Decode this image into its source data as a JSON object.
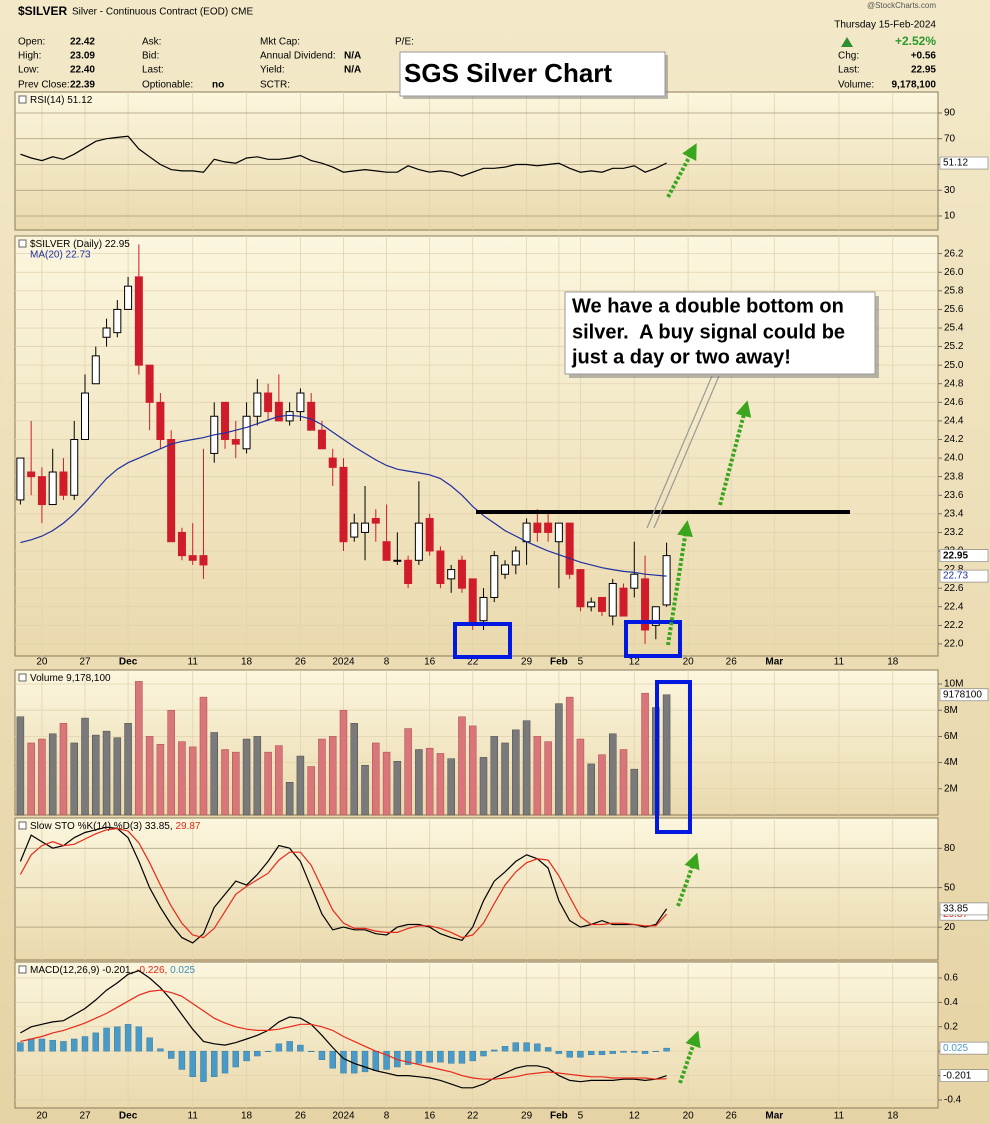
{
  "header": {
    "symbol": "$SILVER",
    "description": "Silver - Continuous Contract (EOD) CME",
    "watermark": "@StockCharts.com",
    "date": "Thursday 15-Feb-2024",
    "change_pct": "+2.52%",
    "right_fields": [
      {
        "label": "Chg:",
        "value": "+0.56"
      },
      {
        "label": "Last:",
        "value": "22.95"
      },
      {
        "label": "Volume:",
        "value": "9,178,100"
      }
    ],
    "columns": [
      [
        {
          "label": "Open:",
          "value": "22.42"
        },
        {
          "label": "High:",
          "value": "23.09"
        },
        {
          "label": "Low:",
          "value": "22.40"
        },
        {
          "label": "Prev Close:",
          "value": "22.39"
        }
      ],
      [
        {
          "label": "Ask:"
        },
        {
          "label": "Bid:"
        },
        {
          "label": "Last:"
        },
        {
          "label": "Optionable:",
          "value": "no"
        }
      ],
      [
        {
          "label": "Mkt Cap:"
        },
        {
          "label": "Annual Dividend:",
          "value": "N/A"
        },
        {
          "label": "Yield:",
          "value": "N/A"
        },
        {
          "label": "SCTR:"
        }
      ],
      [
        {
          "label": "P/E:"
        }
      ]
    ]
  },
  "title_box": "SGS Silver Chart",
  "callout": [
    "We have a double bottom on",
    "silver.  A buy signal could be",
    "just a day or two away!"
  ],
  "chart_data": [
    {
      "type": "line",
      "legend": [
        {
          "text": "RSI(14) 51.12",
          "color": "#000000"
        }
      ],
      "series": [
        {
          "color": "#000000",
          "last_value_box": true,
          "values": [
            58,
            55,
            53,
            56,
            54,
            58,
            63,
            68,
            70,
            71,
            72,
            62,
            56,
            50,
            46,
            45,
            45,
            44,
            54,
            52,
            51,
            55,
            56,
            54,
            54,
            55,
            57,
            53,
            51,
            48,
            44,
            45,
            46,
            45,
            44,
            44,
            49,
            46,
            44,
            45,
            44,
            41,
            44,
            47,
            47,
            48,
            50,
            50,
            49,
            50,
            51,
            47,
            44,
            45,
            44,
            47,
            47,
            49,
            44,
            47,
            51.12
          ]
        }
      ],
      "ylim": [
        -0.9,
        106.3
      ],
      "yticks": [
        10,
        30,
        50,
        70,
        90
      ],
      "grid": true,
      "grid_color": "#a89a7c"
    },
    {
      "type": "candlestick",
      "legend": [
        {
          "text": "$SILVER (Daily) 22.95",
          "color": "#000000"
        }
      ],
      "x": [
        0,
        1,
        2,
        3,
        4,
        5,
        6,
        7,
        8,
        9,
        10,
        11,
        12,
        13,
        14,
        15,
        16,
        17,
        18,
        19,
        20,
        21,
        22,
        23,
        24,
        25,
        26,
        27,
        28,
        29,
        30,
        31,
        32,
        33,
        34,
        35,
        36,
        37,
        38,
        39,
        40,
        41,
        42,
        43,
        44,
        45,
        46,
        47,
        48,
        49,
        50,
        51,
        52,
        53,
        54,
        55,
        56,
        57,
        58,
        59,
        60
      ],
      "open": [
        23.55,
        23.85,
        23.8,
        23.5,
        23.85,
        23.6,
        24.2,
        24.8,
        25.3,
        25.35,
        25.6,
        25.95,
        25.0,
        24.6,
        24.2,
        23.2,
        22.95,
        22.95,
        24.05,
        24.6,
        24.2,
        24.1,
        24.45,
        24.7,
        24.6,
        24.4,
        24.5,
        24.6,
        24.3,
        24.0,
        23.9,
        23.15,
        23.2,
        23.35,
        23.1,
        22.9,
        22.9,
        22.9,
        23.35,
        23.0,
        22.7,
        22.9,
        22.7,
        22.25,
        22.5,
        22.75,
        22.85,
        23.1,
        23.3,
        23.3,
        23.1,
        23.3,
        22.8,
        22.4,
        22.5,
        22.3,
        22.6,
        22.6,
        22.7,
        22.2,
        22.42
      ],
      "high": [
        24.0,
        24.4,
        23.9,
        24.1,
        24.0,
        24.4,
        24.9,
        25.2,
        25.5,
        25.7,
        25.95,
        26.3,
        25.0,
        24.7,
        24.3,
        23.25,
        23.3,
        24.1,
        24.6,
        24.6,
        24.4,
        24.6,
        24.85,
        24.8,
        24.9,
        24.6,
        24.75,
        24.7,
        24.4,
        24.1,
        24.0,
        23.4,
        23.7,
        23.45,
        23.5,
        23.2,
        22.95,
        23.75,
        23.4,
        23.05,
        22.85,
        22.95,
        22.7,
        22.6,
        23.0,
        22.9,
        23.05,
        23.35,
        23.45,
        23.4,
        23.3,
        23.3,
        22.8,
        22.5,
        22.5,
        22.7,
        22.65,
        23.1,
        22.95,
        22.4,
        23.09
      ],
      "low": [
        23.5,
        23.6,
        23.3,
        23.5,
        23.55,
        23.55,
        24.2,
        24.8,
        25.2,
        25.3,
        25.6,
        24.9,
        24.3,
        24.1,
        23.1,
        22.9,
        22.85,
        22.7,
        23.95,
        24.1,
        24.0,
        24.05,
        24.35,
        24.4,
        24.4,
        24.35,
        24.4,
        24.3,
        24.1,
        23.7,
        23.0,
        23.1,
        22.9,
        23.1,
        22.9,
        22.85,
        22.6,
        22.85,
        22.95,
        22.6,
        22.55,
        22.55,
        22.15,
        22.15,
        22.45,
        22.7,
        22.75,
        22.85,
        23.1,
        23.1,
        22.6,
        22.7,
        22.35,
        22.35,
        22.3,
        22.2,
        22.3,
        22.5,
        22.0,
        22.05,
        22.4
      ],
      "close": [
        24.0,
        23.8,
        23.5,
        23.85,
        23.6,
        24.2,
        24.7,
        25.1,
        25.4,
        25.6,
        25.85,
        25.0,
        24.6,
        24.2,
        23.1,
        22.95,
        22.9,
        22.85,
        24.45,
        24.2,
        24.15,
        24.45,
        24.7,
        24.5,
        24.4,
        24.5,
        24.7,
        24.3,
        24.1,
        23.9,
        23.1,
        23.3,
        23.3,
        23.3,
        22.9,
        22.9,
        22.65,
        23.3,
        23.0,
        22.65,
        22.8,
        22.6,
        22.2,
        22.5,
        22.95,
        22.85,
        23.0,
        23.3,
        23.2,
        23.2,
        23.3,
        22.75,
        22.4,
        22.45,
        22.35,
        22.65,
        22.3,
        22.75,
        22.15,
        22.4,
        22.95
      ],
      "up_color": "#000000",
      "down_color": "#d01c2a",
      "last_value_box": true,
      "series": [
        {
          "name": "MA(20) 22.73",
          "color": "#1f2fa0",
          "last_value_box": true,
          "values": [
            23.09,
            23.12,
            23.16,
            23.22,
            23.3,
            23.4,
            23.52,
            23.65,
            23.78,
            23.88,
            23.95,
            24.0,
            24.05,
            24.1,
            24.15,
            24.18,
            24.2,
            24.22,
            24.25,
            24.27,
            24.3,
            24.33,
            24.37,
            24.41,
            24.45,
            24.46,
            24.45,
            24.42,
            24.36,
            24.28,
            24.2,
            24.12,
            24.05,
            23.98,
            23.92,
            23.88,
            23.86,
            23.84,
            23.82,
            23.78,
            23.7,
            23.6,
            23.48,
            23.38,
            23.3,
            23.22,
            23.16,
            23.1,
            23.05,
            23.0,
            22.96,
            22.92,
            22.88,
            22.85,
            22.82,
            22.8,
            22.78,
            22.77,
            22.75,
            22.74,
            22.73
          ]
        }
      ],
      "xlim": [
        -0.5,
        85.2
      ],
      "xticks": [
        {
          "value": 2,
          "label": "20"
        },
        {
          "value": 6,
          "label": "27"
        },
        {
          "value": 10,
          "label": "Dec"
        },
        {
          "value": 16,
          "label": "11"
        },
        {
          "value": 21,
          "label": "18"
        },
        {
          "value": 26,
          "label": "26"
        },
        {
          "value": 30,
          "label": "2024"
        },
        {
          "value": 34,
          "label": "8"
        },
        {
          "value": 38,
          "label": "16"
        },
        {
          "value": 42,
          "label": "22"
        },
        {
          "value": 47,
          "label": "29"
        },
        {
          "value": 50,
          "label": "Feb"
        },
        {
          "value": 52,
          "label": "5"
        },
        {
          "value": 57,
          "label": "12"
        },
        {
          "value": 62,
          "label": "20"
        },
        {
          "value": 66,
          "label": "26"
        },
        {
          "value": 70,
          "label": "Mar"
        },
        {
          "value": 76,
          "label": "11"
        },
        {
          "value": 81,
          "label": "18"
        }
      ],
      "ylim": [
        21.87,
        26.39
      ],
      "yticks": [
        {
          "value": 22,
          "label": "22.0"
        },
        22.2,
        22.4,
        22.6,
        22.8,
        {
          "value": 23,
          "label": "23.0"
        },
        23.2,
        23.4,
        23.6,
        23.8,
        {
          "value": 24,
          "label": "24.0"
        },
        24.2,
        24.4,
        24.6,
        24.8,
        {
          "value": 25,
          "label": "25.0"
        },
        25.2,
        25.4,
        25.6,
        25.8,
        {
          "value": 26,
          "label": "26.0"
        },
        26.2
      ],
      "grid": true,
      "grid_color": "#e2d3ae"
    },
    {
      "type": "bar",
      "legend": [
        {
          "text": "Volume 9,178,100",
          "color": "#000000"
        }
      ],
      "values": [
        7500000,
        5500000,
        5800000,
        6200000,
        7000000,
        5500000,
        7400000,
        6100000,
        6400000,
        5900000,
        7000000,
        10200000,
        6000000,
        5400000,
        8000000,
        5600000,
        5200000,
        9000000,
        6300000,
        5000000,
        4800000,
        5800000,
        6000000,
        4800000,
        5300000,
        2500000,
        4500000,
        3700000,
        5800000,
        6000000,
        8000000,
        7000000,
        3800000,
        5500000,
        4800000,
        4100000,
        6600000,
        5000000,
        5100000,
        4700000,
        4300000,
        7500000,
        6800000,
        4400000,
        6000000,
        5500000,
        6500000,
        7200000,
        6000000,
        5600000,
        8500000,
        9000000,
        5800000,
        3900000,
        4600000,
        6200000,
        5000000,
        3500000,
        9300000,
        8200000,
        9178100
      ],
      "up_color": "#7a7a7a",
      "down_color": "#d9767a",
      "last_value_box": true,
      "ylim": [
        0,
        11070000
      ],
      "yticks": [
        {
          "value": 2000000,
          "label": "2M"
        },
        {
          "value": 4000000,
          "label": "4M"
        },
        {
          "value": 6000000,
          "label": "6M"
        },
        {
          "value": 8000000,
          "label": "8M"
        },
        {
          "value": 10000000,
          "label": "10M"
        }
      ],
      "grid": true,
      "grid_color": "#e2d3ae"
    },
    {
      "type": "line",
      "legend": [
        {
          "text": "Slow STO %K(14) %D(3) 33.85,",
          "color": "#000000"
        },
        {
          "text": "29.87",
          "color": "#e8281a"
        }
      ],
      "series": [
        {
          "color": "#000000",
          "last_value_box": true,
          "values": [
            70,
            90,
            85,
            80,
            82,
            88,
            92,
            94,
            96,
            95,
            88,
            70,
            50,
            35,
            22,
            12,
            8,
            15,
            35,
            45,
            55,
            52,
            60,
            70,
            82,
            80,
            70,
            50,
            30,
            18,
            20,
            18,
            18,
            15,
            14,
            20,
            22,
            22,
            20,
            15,
            12,
            10,
            20,
            40,
            55,
            62,
            70,
            75,
            72,
            65,
            40,
            25,
            20,
            22,
            25,
            22,
            22,
            22,
            20,
            22,
            33.85
          ]
        },
        {
          "color": "#e8281a",
          "last_value_box": true,
          "values": [
            60,
            75,
            82,
            85,
            82,
            83,
            87,
            91,
            94,
            95,
            93,
            84,
            69,
            52,
            36,
            23,
            14,
            12,
            19,
            32,
            45,
            51,
            56,
            61,
            71,
            77,
            77,
            67,
            50,
            33,
            23,
            19,
            19,
            17,
            16,
            16,
            19,
            21,
            21,
            19,
            16,
            12,
            14,
            23,
            38,
            52,
            62,
            69,
            72,
            71,
            59,
            43,
            28,
            22,
            22,
            23,
            23,
            22,
            21,
            21,
            29.87
          ]
        }
      ],
      "ylim": [
        -5,
        103
      ],
      "yticks": [
        20,
        50,
        80
      ],
      "grid": true,
      "grid_color": "#a89a7c"
    },
    {
      "type": "line",
      "legend": [
        {
          "text": "MACD(12,26,9) -0.201,",
          "color": "#000000"
        },
        {
          "text": "-0.226,",
          "color": "#e8281a"
        },
        {
          "text": "0.025",
          "color": "#3d8fbf"
        }
      ],
      "series": [
        {
          "color": "#000000",
          "last_value_box": true,
          "values": [
            0.15,
            0.2,
            0.22,
            0.24,
            0.25,
            0.3,
            0.35,
            0.42,
            0.5,
            0.56,
            0.63,
            0.66,
            0.6,
            0.52,
            0.42,
            0.3,
            0.18,
            0.08,
            0.06,
            0.05,
            0.07,
            0.1,
            0.13,
            0.17,
            0.24,
            0.28,
            0.27,
            0.22,
            0.13,
            0.03,
            -0.06,
            -0.1,
            -0.13,
            -0.16,
            -0.18,
            -0.2,
            -0.2,
            -0.21,
            -0.22,
            -0.24,
            -0.27,
            -0.3,
            -0.3,
            -0.27,
            -0.22,
            -0.18,
            -0.14,
            -0.12,
            -0.12,
            -0.14,
            -0.2,
            -0.24,
            -0.25,
            -0.24,
            -0.24,
            -0.24,
            -0.23,
            -0.23,
            -0.24,
            -0.23,
            -0.201
          ]
        },
        {
          "color": "#e8281a",
          "values": [
            0.08,
            0.1,
            0.12,
            0.15,
            0.17,
            0.2,
            0.23,
            0.27,
            0.31,
            0.36,
            0.41,
            0.46,
            0.49,
            0.5,
            0.48,
            0.45,
            0.39,
            0.33,
            0.27,
            0.23,
            0.2,
            0.18,
            0.17,
            0.17,
            0.18,
            0.2,
            0.22,
            0.22,
            0.2,
            0.17,
            0.12,
            0.08,
            0.04,
            0,
            -0.03,
            -0.07,
            -0.09,
            -0.11,
            -0.13,
            -0.15,
            -0.17,
            -0.2,
            -0.22,
            -0.23,
            -0.23,
            -0.22,
            -0.21,
            -0.19,
            -0.18,
            -0.17,
            -0.18,
            -0.19,
            -0.2,
            -0.21,
            -0.21,
            -0.22,
            -0.22,
            -0.22,
            -0.22,
            -0.23,
            -0.226
          ]
        },
        {
          "type": "bar",
          "color": "#4a9ac8",
          "last_value_box": true,
          "values": [
            0.07,
            0.1,
            0.1,
            0.09,
            0.08,
            0.1,
            0.12,
            0.15,
            0.19,
            0.2,
            0.22,
            0.2,
            0.11,
            0.02,
            -0.06,
            -0.15,
            -0.21,
            -0.25,
            -0.21,
            -0.18,
            -0.13,
            -0.08,
            -0.04,
            0,
            0.06,
            0.08,
            0.05,
            0,
            -0.07,
            -0.14,
            -0.18,
            -0.18,
            -0.17,
            -0.16,
            -0.15,
            -0.13,
            -0.11,
            -0.1,
            -0.09,
            -0.09,
            -0.1,
            -0.1,
            -0.08,
            -0.04,
            0.01,
            0.04,
            0.07,
            0.07,
            0.06,
            0.03,
            -0.02,
            -0.05,
            -0.05,
            -0.03,
            -0.03,
            -0.02,
            -0.01,
            -0.01,
            -0.02,
            0,
            0.025
          ]
        }
      ],
      "ylim": [
        -0.466,
        0.731
      ],
      "yticks": [
        -0.4,
        -0.2,
        0,
        0.2,
        0.4,
        0.6
      ],
      "grid": true,
      "grid_color": "#e2d3ae"
    }
  ]
}
